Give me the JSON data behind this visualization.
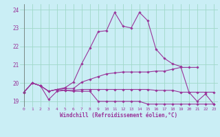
{
  "background_color": "#caeef5",
  "grid_color": "#a0d8c8",
  "line_color": "#993399",
  "x_label": "Windchill (Refroidissement éolien,°C)",
  "ylim": [
    18.7,
    24.3
  ],
  "xlim": [
    -0.5,
    23.5
  ],
  "yticks": [
    19,
    20,
    21,
    22,
    23,
    24
  ],
  "xticks": [
    0,
    1,
    2,
    3,
    4,
    5,
    6,
    7,
    8,
    9,
    10,
    11,
    12,
    13,
    14,
    15,
    16,
    17,
    18,
    19,
    20,
    21,
    22,
    23
  ],
  "series": [
    [
      19.5,
      20.0,
      19.85,
      19.1,
      19.55,
      19.6,
      19.55,
      19.55,
      19.55,
      19.0,
      19.0,
      19.0,
      19.0,
      19.0,
      19.0,
      18.85,
      18.85,
      18.85,
      18.85,
      18.85,
      18.85,
      18.85,
      18.85,
      18.85
    ],
    [
      19.5,
      20.0,
      19.85,
      19.55,
      19.65,
      19.6,
      19.6,
      19.65,
      19.65,
      19.65,
      19.65,
      19.65,
      19.65,
      19.65,
      19.65,
      19.65,
      19.6,
      19.6,
      19.6,
      19.5,
      19.5,
      19.5,
      19.5,
      19.5
    ],
    [
      19.5,
      20.0,
      19.85,
      19.55,
      19.65,
      19.7,
      19.7,
      20.05,
      20.2,
      20.35,
      20.5,
      20.55,
      20.6,
      20.6,
      20.6,
      20.6,
      20.65,
      20.65,
      20.75,
      20.85,
      20.85,
      20.85,
      null,
      null
    ],
    [
      19.5,
      20.0,
      19.85,
      19.55,
      19.65,
      19.75,
      20.05,
      21.05,
      21.9,
      22.8,
      22.85,
      23.85,
      23.1,
      23.0,
      23.85,
      23.4,
      21.85,
      21.35,
      21.05,
      20.9,
      19.5,
      19.0,
      19.4,
      18.85
    ]
  ]
}
